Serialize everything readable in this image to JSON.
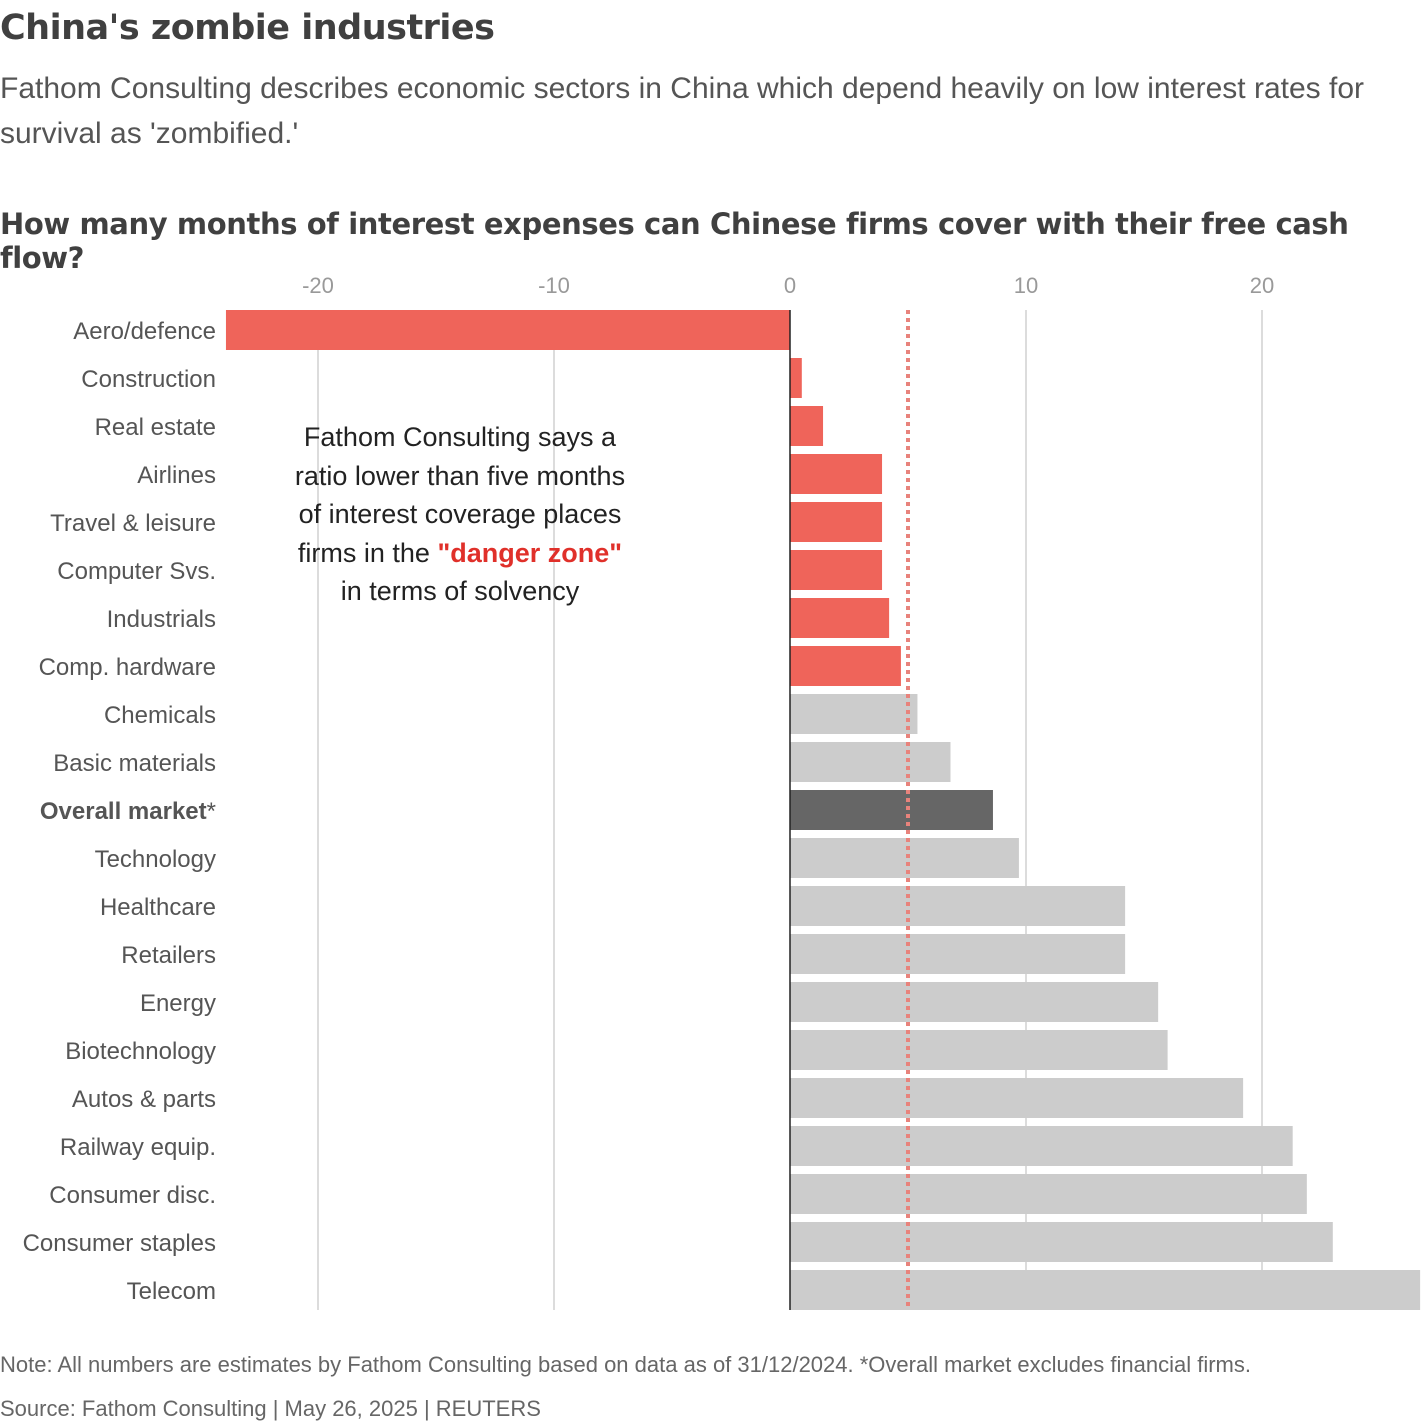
{
  "header": {
    "title": "China's zombie industries",
    "subtitle": "Fathom Consulting describes economic sectors in China which depend heavily on low interest rates for survival as 'zombified.'"
  },
  "chart_data": {
    "type": "bar",
    "orientation": "horizontal",
    "title": "How many months of interest expenses can Chinese firms cover with their free cash flow?",
    "xlabel": "",
    "ylabel": "",
    "xlim": [
      -24,
      26.7
    ],
    "xticks": [
      -20,
      -10,
      0,
      10,
      20
    ],
    "xtick_labels": [
      "-20",
      "-10",
      "0",
      "10",
      "20"
    ],
    "grid": "vertical",
    "categories": [
      "Aero/defence",
      "Construction",
      "Real estate",
      "Airlines",
      "Travel & leisure",
      "Computer Svs.",
      "Industrials",
      "Comp. hardware",
      "Chemicals",
      "Basic materials",
      "Overall market",
      "Technology",
      "Healthcare",
      "Retailers",
      "Energy",
      "Biotechnology",
      "Autos & parts",
      "Railway equip.",
      "Consumer disc.",
      "Consumer staples",
      "Telecom"
    ],
    "category_suffix": {
      "Overall market": "*"
    },
    "values": [
      -23.9,
      0.5,
      1.4,
      3.9,
      3.9,
      3.9,
      4.2,
      4.7,
      5.4,
      6.8,
      8.6,
      9.7,
      14.2,
      14.2,
      15.6,
      16.0,
      19.2,
      21.3,
      21.9,
      23.0,
      26.7
    ],
    "threshold": 5,
    "colors": {
      "danger": "#ef645a",
      "normal": "#cccccc",
      "overall": "#666666",
      "threshold": "#e8837c",
      "grid": "#d0d0d0"
    },
    "annotation": {
      "lines": [
        "Fathom Consulting says a",
        "ratio lower than five months",
        "of interest coverage places"
      ],
      "line4_pre": "firms in the ",
      "line4_highlight": "\"danger zone\"",
      "line5": "in terms of solvency"
    }
  },
  "footer": {
    "note": "Note: All numbers are estimates by Fathom Consulting based on data as of 31/12/2024. *Overall market excludes financial firms.",
    "source": "Source: Fathom Consulting | May 26, 2025 | REUTERS"
  }
}
